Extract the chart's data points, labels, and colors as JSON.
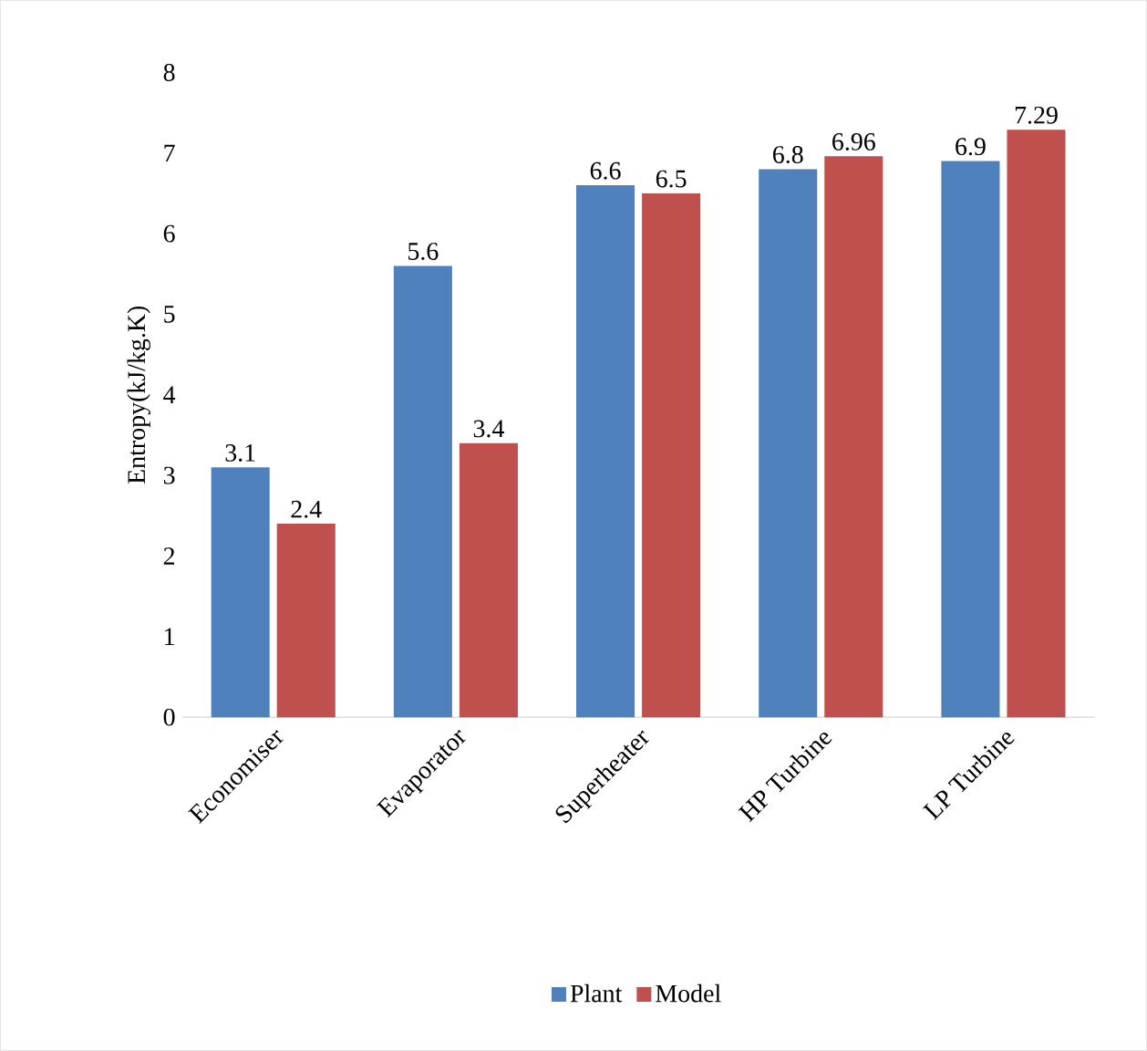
{
  "chart_data": {
    "type": "bar",
    "ylabel": "Entropy(kJ/kg.K)",
    "categories": [
      "Economiser",
      "Evaporator",
      "Superheater",
      "HP Turbine",
      "LP Turbine"
    ],
    "series": [
      {
        "name": "Plant",
        "color": "#4f81bd",
        "values": [
          3.1,
          5.6,
          6.6,
          6.8,
          6.9
        ]
      },
      {
        "name": "Model",
        "color": "#c0504d",
        "values": [
          2.4,
          3.4,
          6.5,
          6.96,
          7.29
        ]
      }
    ],
    "ylim": [
      0,
      8
    ],
    "yticks": [
      0,
      1,
      2,
      3,
      4,
      5,
      6,
      7,
      8
    ],
    "data_labels": true,
    "legend": "bottom",
    "grid": false
  }
}
